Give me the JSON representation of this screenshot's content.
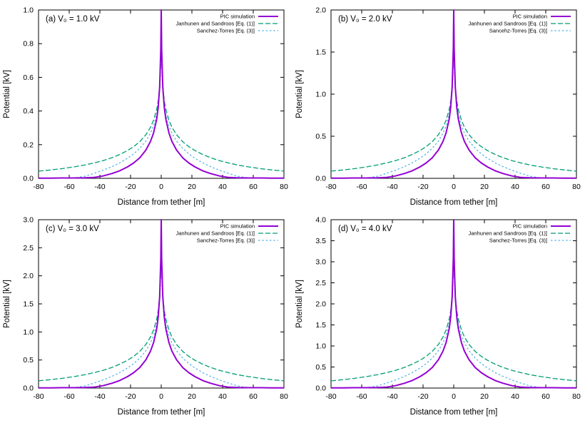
{
  "figure": {
    "background": "#ffffff",
    "axis_color": "#000000",
    "xlabel": "Distance from tether [m]",
    "ylabel": "Potential [kV]"
  },
  "chart_data": [
    {
      "type": "line",
      "panel": "a",
      "title": "(a) V₀ = 1.0 kV",
      "v0_kV": 1.0,
      "xlabel": "Distance from tether [m]",
      "ylabel": "Potential [kV]",
      "xlim": [
        -80,
        80
      ],
      "ylim": [
        0.0,
        1.0
      ],
      "xticks": [
        -80,
        -60,
        -40,
        -20,
        0,
        20,
        40,
        60,
        80
      ],
      "yticks": [
        0.0,
        0.2,
        0.4,
        0.6,
        0.8,
        1.0
      ],
      "grid": false,
      "legend_position": "top-right",
      "x": [
        -80,
        -72,
        -65,
        -57,
        -50,
        -44,
        -38,
        -32,
        -27,
        -22,
        -18,
        -14,
        -10,
        -7,
        -5,
        -3,
        -2,
        -1,
        -0.3,
        0,
        0.3,
        1,
        2,
        3,
        5,
        7,
        10,
        14,
        18,
        22,
        27,
        32,
        38,
        44,
        50,
        57,
        65,
        72,
        80
      ],
      "series": [
        {
          "name": "PIC simulation",
          "color": "#9400d3",
          "style": "solid",
          "width": 2,
          "y": [
            0.001,
            0.001,
            0.002,
            0.002,
            0.003,
            0.005,
            0.014,
            0.029,
            0.045,
            0.068,
            0.091,
            0.122,
            0.168,
            0.219,
            0.27,
            0.351,
            0.42,
            0.542,
            0.771,
            1.0,
            0.771,
            0.542,
            0.42,
            0.351,
            0.27,
            0.219,
            0.168,
            0.122,
            0.091,
            0.068,
            0.045,
            0.029,
            0.014,
            0.005,
            0.003,
            0.002,
            0.002,
            0.001,
            0.001
          ]
        },
        {
          "name": "Janhunen and Sandroos [Eq. (1)]",
          "color": "#009e73",
          "style": "dashed",
          "dash": "7,3",
          "width": 1.3,
          "y": [
            0.043,
            0.05,
            0.057,
            0.068,
            0.079,
            0.091,
            0.105,
            0.123,
            0.142,
            0.165,
            0.188,
            0.218,
            0.259,
            0.303,
            0.345,
            0.408,
            0.458,
            0.544,
            0.694,
            1.0,
            0.694,
            0.544,
            0.458,
            0.408,
            0.345,
            0.303,
            0.259,
            0.218,
            0.188,
            0.165,
            0.142,
            0.123,
            0.105,
            0.091,
            0.079,
            0.068,
            0.057,
            0.05,
            0.043
          ]
        },
        {
          "name": "Sanchez-Torres [Eq. (3)]",
          "color": "#56b4e9",
          "style": "dashed",
          "dash": "2.5,2.8",
          "width": 1.3,
          "y": [
            0.0,
            0.001,
            0.001,
            0.002,
            0.012,
            0.029,
            0.048,
            0.07,
            0.092,
            0.119,
            0.145,
            0.178,
            0.221,
            0.268,
            0.311,
            0.378,
            0.43,
            0.52,
            0.677,
            1.0,
            0.677,
            0.52,
            0.43,
            0.378,
            0.311,
            0.268,
            0.221,
            0.178,
            0.145,
            0.119,
            0.092,
            0.07,
            0.048,
            0.029,
            0.012,
            0.002,
            0.001,
            0.001,
            0.0
          ]
        }
      ]
    },
    {
      "type": "line",
      "panel": "b",
      "title": "(b) V₀ = 2.0 kV",
      "v0_kV": 2.0,
      "xlabel": "Distance from tether [m]",
      "ylabel": "Potential [kV]",
      "xlim": [
        -80,
        80
      ],
      "ylim": [
        0.0,
        2.0
      ],
      "xticks": [
        -80,
        -60,
        -40,
        -20,
        0,
        20,
        40,
        60,
        80
      ],
      "yticks": [
        0.0,
        0.5,
        1.0,
        1.5,
        2.0
      ],
      "grid": false,
      "legend_position": "top-right",
      "x": [
        -80,
        -72,
        -65,
        -57,
        -50,
        -44,
        -38,
        -32,
        -27,
        -22,
        -18,
        -14,
        -10,
        -7,
        -5,
        -3,
        -2,
        -1,
        -0.3,
        0,
        0.3,
        1,
        2,
        3,
        5,
        7,
        10,
        14,
        18,
        22,
        27,
        32,
        38,
        44,
        50,
        57,
        65,
        72,
        80
      ],
      "series": [
        {
          "name": "PIC simulation",
          "color": "#9400d3",
          "style": "solid",
          "width": 2,
          "y": [
            0.002,
            0.002,
            0.004,
            0.004,
            0.006,
            0.01,
            0.028,
            0.058,
            0.09,
            0.136,
            0.182,
            0.244,
            0.336,
            0.438,
            0.54,
            0.702,
            0.84,
            1.084,
            1.542,
            2.0,
            1.542,
            1.084,
            0.84,
            0.702,
            0.54,
            0.438,
            0.336,
            0.244,
            0.182,
            0.136,
            0.09,
            0.058,
            0.028,
            0.01,
            0.006,
            0.004,
            0.004,
            0.002,
            0.002
          ]
        },
        {
          "name": "Janhunen and Sandroos [Eq. (1)]",
          "color": "#009e73",
          "style": "dashed",
          "dash": "7,3",
          "width": 1.3,
          "y": [
            0.086,
            0.1,
            0.114,
            0.136,
            0.158,
            0.182,
            0.21,
            0.246,
            0.284,
            0.33,
            0.376,
            0.436,
            0.518,
            0.606,
            0.69,
            0.816,
            0.916,
            1.088,
            1.388,
            2.0,
            1.388,
            1.088,
            0.916,
            0.816,
            0.69,
            0.606,
            0.518,
            0.436,
            0.376,
            0.33,
            0.284,
            0.246,
            0.21,
            0.182,
            0.158,
            0.136,
            0.114,
            0.1,
            0.086
          ]
        },
        {
          "name": "Sancehz-Torres [Eq. (3)]",
          "color": "#56b4e9",
          "style": "dashed",
          "dash": "2.5,2.8",
          "width": 1.3,
          "y": [
            0.0,
            0.002,
            0.002,
            0.004,
            0.024,
            0.058,
            0.096,
            0.14,
            0.184,
            0.238,
            0.29,
            0.356,
            0.442,
            0.536,
            0.622,
            0.756,
            0.86,
            1.04,
            1.354,
            2.0,
            1.354,
            1.04,
            0.86,
            0.756,
            0.622,
            0.536,
            0.442,
            0.356,
            0.29,
            0.238,
            0.184,
            0.14,
            0.096,
            0.058,
            0.024,
            0.004,
            0.002,
            0.002,
            0.0
          ]
        }
      ]
    },
    {
      "type": "line",
      "panel": "c",
      "title": "(c) V₀ = 3.0 kV",
      "v0_kV": 3.0,
      "xlabel": "Distance from tether [m]",
      "ylabel": "Potential [kV]",
      "xlim": [
        -80,
        80
      ],
      "ylim": [
        0.0,
        3.0
      ],
      "xticks": [
        -80,
        -60,
        -40,
        -20,
        0,
        20,
        40,
        60,
        80
      ],
      "yticks": [
        0.0,
        0.5,
        1.0,
        1.5,
        2.0,
        2.5,
        3.0
      ],
      "grid": false,
      "legend_position": "top-right",
      "x": [
        -80,
        -72,
        -65,
        -57,
        -50,
        -44,
        -38,
        -32,
        -27,
        -22,
        -18,
        -14,
        -10,
        -7,
        -5,
        -3,
        -2,
        -1,
        -0.3,
        0,
        0.3,
        1,
        2,
        3,
        5,
        7,
        10,
        14,
        18,
        22,
        27,
        32,
        38,
        44,
        50,
        57,
        65,
        72,
        80
      ],
      "series": [
        {
          "name": "PIC simulation",
          "color": "#9400d3",
          "style": "solid",
          "width": 2,
          "y": [
            0.003,
            0.003,
            0.006,
            0.006,
            0.009,
            0.015,
            0.042,
            0.087,
            0.135,
            0.204,
            0.273,
            0.366,
            0.504,
            0.657,
            0.81,
            1.053,
            1.26,
            1.626,
            2.313,
            3.0,
            2.313,
            1.626,
            1.26,
            1.053,
            0.81,
            0.657,
            0.504,
            0.366,
            0.273,
            0.204,
            0.135,
            0.087,
            0.042,
            0.015,
            0.009,
            0.006,
            0.006,
            0.003,
            0.003
          ]
        },
        {
          "name": "Janhunen and Sandroos [Eq. (1)]",
          "color": "#009e73",
          "style": "dashed",
          "dash": "7,3",
          "width": 1.3,
          "y": [
            0.129,
            0.15,
            0.171,
            0.204,
            0.237,
            0.273,
            0.315,
            0.369,
            0.426,
            0.495,
            0.564,
            0.654,
            0.777,
            0.909,
            1.035,
            1.224,
            1.374,
            1.632,
            2.082,
            3.0,
            2.082,
            1.632,
            1.374,
            1.224,
            1.035,
            0.909,
            0.777,
            0.654,
            0.564,
            0.495,
            0.426,
            0.369,
            0.315,
            0.273,
            0.237,
            0.204,
            0.171,
            0.15,
            0.129
          ]
        },
        {
          "name": "Sanchez-Torres [Eq. (3)]",
          "color": "#56b4e9",
          "style": "dashed",
          "dash": "2.5,2.8",
          "width": 1.3,
          "y": [
            0.0,
            0.003,
            0.003,
            0.006,
            0.036,
            0.087,
            0.144,
            0.21,
            0.276,
            0.357,
            0.435,
            0.534,
            0.663,
            0.804,
            0.933,
            1.134,
            1.29,
            1.56,
            2.031,
            3.0,
            2.031,
            1.56,
            1.29,
            1.134,
            0.933,
            0.804,
            0.663,
            0.534,
            0.435,
            0.357,
            0.276,
            0.21,
            0.144,
            0.087,
            0.036,
            0.006,
            0.003,
            0.003,
            0.0
          ]
        }
      ]
    },
    {
      "type": "line",
      "panel": "d",
      "title": "(d) V₀ = 4.0 kV",
      "v0_kV": 4.0,
      "xlabel": "Distance from tether [m]",
      "ylabel": "Potential [kV]",
      "xlim": [
        -80,
        80
      ],
      "ylim": [
        0.0,
        4.0
      ],
      "xticks": [
        -80,
        -60,
        -40,
        -20,
        0,
        20,
        40,
        60,
        80
      ],
      "yticks": [
        0.0,
        0.5,
        1.0,
        1.5,
        2.0,
        2.5,
        3.0,
        3.5,
        4.0
      ],
      "grid": false,
      "legend_position": "top-right",
      "x": [
        -80,
        -72,
        -65,
        -57,
        -50,
        -44,
        -38,
        -32,
        -27,
        -22,
        -18,
        -14,
        -10,
        -7,
        -5,
        -3,
        -2,
        -1,
        -0.3,
        0,
        0.3,
        1,
        2,
        3,
        5,
        7,
        10,
        14,
        18,
        22,
        27,
        32,
        38,
        44,
        50,
        57,
        65,
        72,
        80
      ],
      "series": [
        {
          "name": "PIC simulation",
          "color": "#9400d3",
          "style": "solid",
          "width": 2,
          "y": [
            0.004,
            0.004,
            0.008,
            0.008,
            0.012,
            0.02,
            0.056,
            0.116,
            0.18,
            0.272,
            0.364,
            0.488,
            0.672,
            0.876,
            1.08,
            1.404,
            1.68,
            2.168,
            3.084,
            4.0,
            3.084,
            2.168,
            1.68,
            1.404,
            1.08,
            0.876,
            0.672,
            0.488,
            0.364,
            0.272,
            0.18,
            0.116,
            0.056,
            0.02,
            0.012,
            0.008,
            0.008,
            0.004,
            0.004
          ]
        },
        {
          "name": "Janhunen and Sandroos [Eq. (1)]",
          "color": "#009e73",
          "style": "dashed",
          "dash": "7,3",
          "width": 1.3,
          "y": [
            0.172,
            0.2,
            0.228,
            0.272,
            0.316,
            0.364,
            0.42,
            0.492,
            0.568,
            0.66,
            0.752,
            0.872,
            1.036,
            1.212,
            1.38,
            1.632,
            1.832,
            2.176,
            2.776,
            4.0,
            2.776,
            2.176,
            1.832,
            1.632,
            1.38,
            1.212,
            1.036,
            0.872,
            0.752,
            0.66,
            0.568,
            0.492,
            0.42,
            0.364,
            0.316,
            0.272,
            0.228,
            0.2,
            0.172
          ]
        },
        {
          "name": "Sanchez-Torres [Eq. (3)]",
          "color": "#56b4e9",
          "style": "dashed",
          "dash": "2.5,2.8",
          "width": 1.3,
          "y": [
            0.0,
            0.004,
            0.004,
            0.008,
            0.048,
            0.116,
            0.192,
            0.28,
            0.368,
            0.476,
            0.58,
            0.712,
            0.884,
            1.072,
            1.244,
            1.512,
            1.72,
            2.08,
            2.708,
            4.0,
            2.708,
            2.08,
            1.72,
            1.512,
            1.244,
            1.072,
            0.884,
            0.712,
            0.58,
            0.476,
            0.368,
            0.28,
            0.192,
            0.116,
            0.048,
            0.008,
            0.004,
            0.004,
            0.0
          ]
        }
      ]
    }
  ]
}
